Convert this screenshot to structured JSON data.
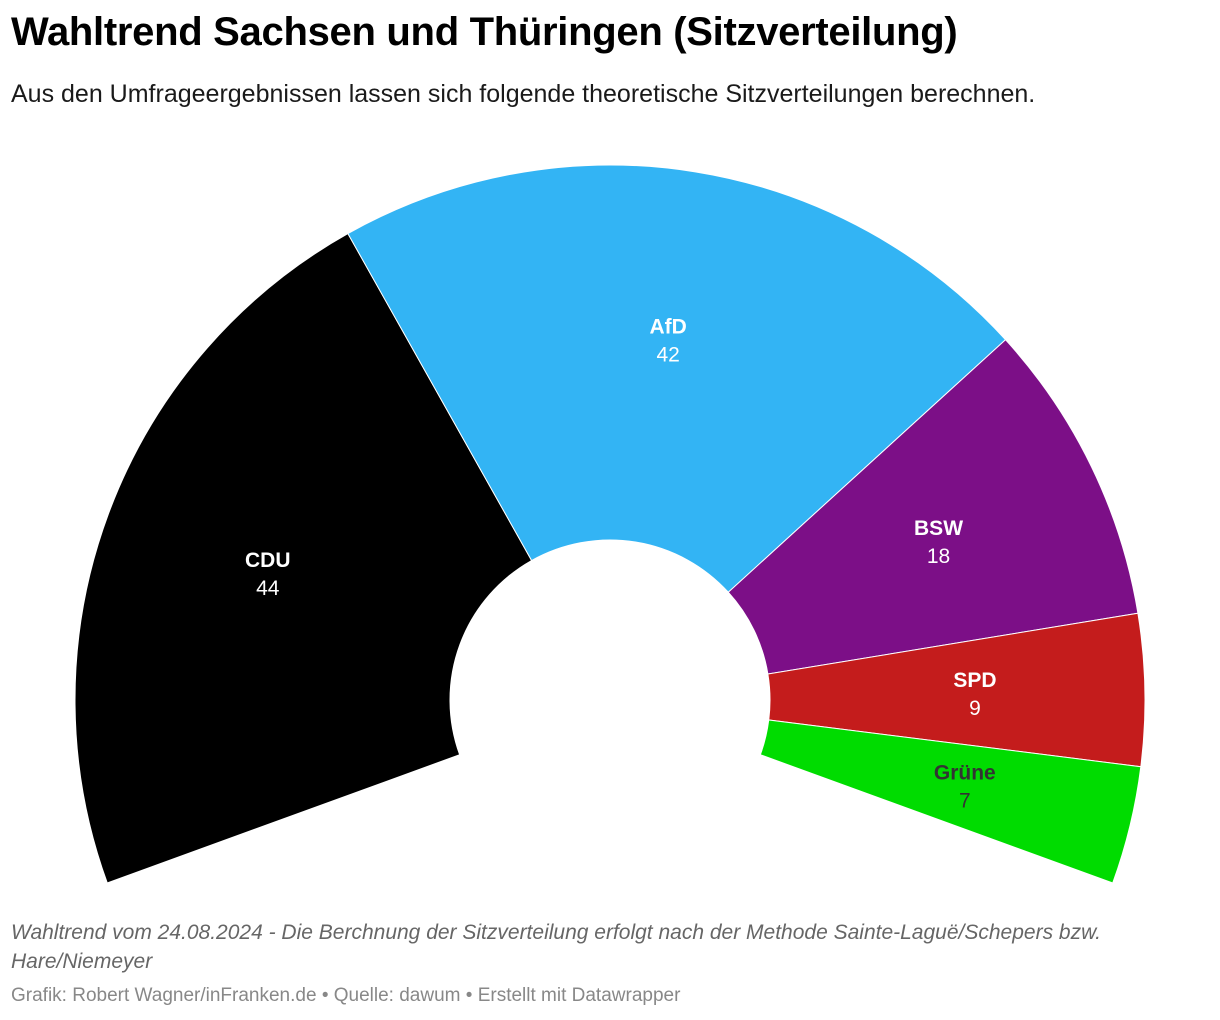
{
  "header": {
    "title": "Wahltrend Sachsen und Thüringen (Sitzverteilung)",
    "subtitle": "Aus den Umfrageergebnissen lassen sich folgende theoretische Sitzverteilungen berechnen."
  },
  "chart_data": {
    "type": "parliament-donut",
    "title": "Wahltrend Sachsen und Thüringen (Sitzverteilung)",
    "subtitle": "Aus den Umfrageergebnissen lassen sich folgende theoretische Sitzverteilungen berechnen.",
    "total_seats": 120,
    "arc_degrees": 220,
    "parties": [
      {
        "name": "CDU",
        "seats": 44,
        "color": "#000000",
        "label_color": "#ffffff"
      },
      {
        "name": "AfD",
        "seats": 42,
        "color": "#33b4f4",
        "label_color": "#ffffff"
      },
      {
        "name": "BSW",
        "seats": 18,
        "color": "#7c0f87",
        "label_color": "#ffffff"
      },
      {
        "name": "SPD",
        "seats": 9,
        "color": "#c41c1c",
        "label_color": "#ffffff"
      },
      {
        "name": "Grüne",
        "seats": 7,
        "color": "#00dc00",
        "label_color": "#333333"
      }
    ]
  },
  "notes": "Wahltrend vom 24.08.2024 - Die Berchnung der Sitzverteilung erfolgt nach der Methode Sainte-Laguë/Schepers bzw. Hare/Niemeyer",
  "footer": "Grafik: Robert Wagner/inFranken.de • Quelle: dawum • Erstellt mit Datawrapper"
}
